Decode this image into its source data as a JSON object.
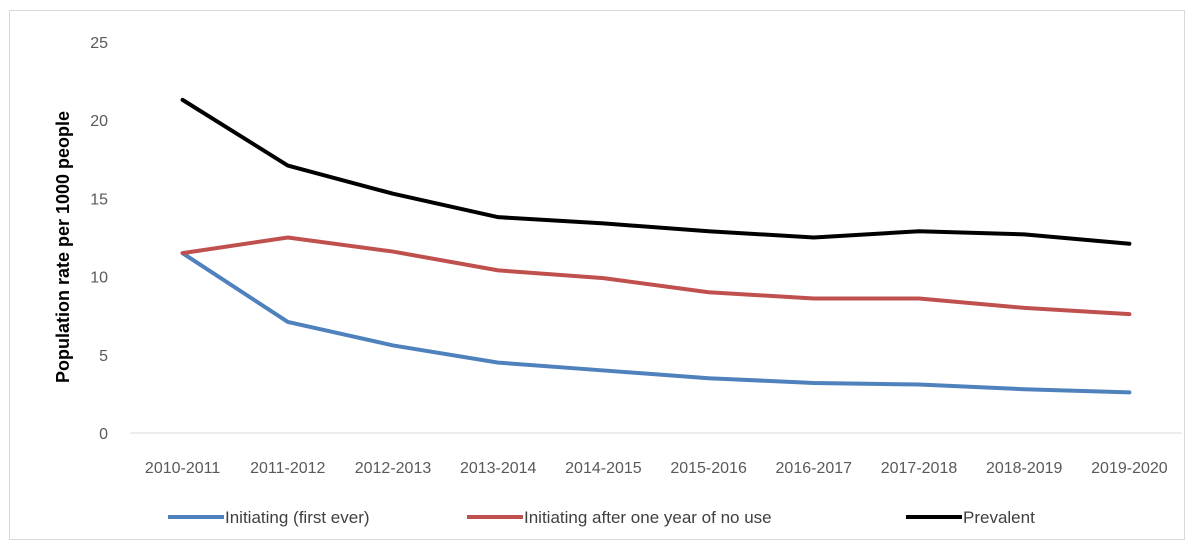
{
  "chart_data": {
    "type": "line",
    "title": "",
    "xlabel": "",
    "ylabel": "Population rate per 1000 people",
    "ylim": [
      0,
      25
    ],
    "yticks": [
      0,
      5,
      10,
      15,
      20,
      25
    ],
    "grid": false,
    "legend_position": "bottom",
    "categories": [
      "2010-2011",
      "2011-2012",
      "2012-2013",
      "2013-2014",
      "2014-2015",
      "2015-2016",
      "2016-2017",
      "2017-2018",
      "2018-2019",
      "2019-2020"
    ],
    "series": [
      {
        "name": "Initiating (first ever)",
        "color": "#4f81bd",
        "values": [
          11.5,
          7.1,
          5.6,
          4.5,
          4.0,
          3.5,
          3.2,
          3.1,
          2.8,
          2.6
        ]
      },
      {
        "name": "Initiating after one year of no use",
        "color": "#c0504d",
        "values": [
          11.5,
          12.5,
          11.6,
          10.4,
          9.9,
          9.0,
          8.6,
          8.6,
          8.0,
          7.6
        ]
      },
      {
        "name": "Prevalent",
        "color": "#000000",
        "values": [
          21.3,
          17.1,
          15.3,
          13.8,
          13.4,
          12.9,
          12.5,
          12.9,
          12.7,
          12.1
        ]
      }
    ]
  }
}
